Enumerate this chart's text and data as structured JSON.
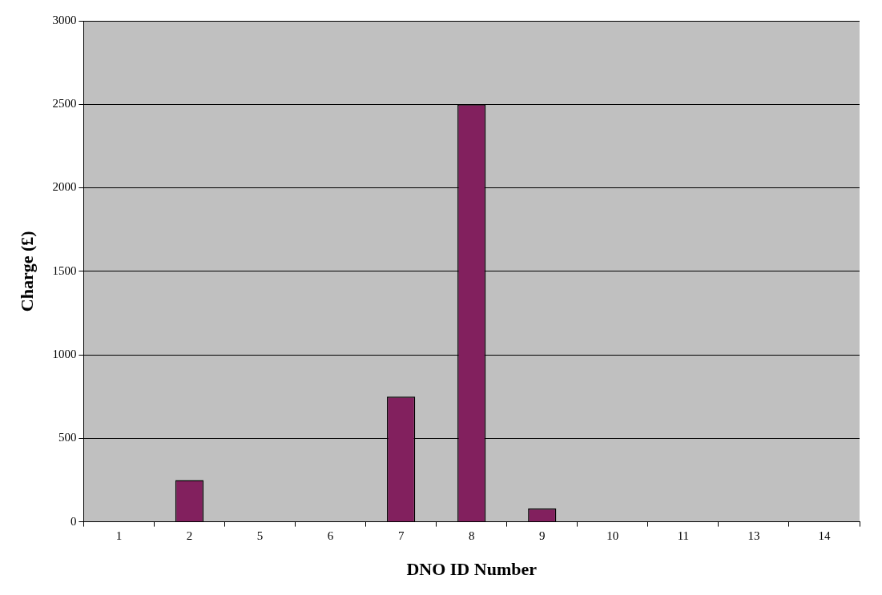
{
  "chart_data": {
    "type": "bar",
    "xlabel": "DNO ID Number",
    "ylabel": "Charge (£)",
    "categories": [
      "1",
      "2",
      "5",
      "6",
      "7",
      "8",
      "9",
      "10",
      "11",
      "13",
      "14"
    ],
    "values": [
      0,
      250,
      0,
      0,
      750,
      2500,
      80,
      0,
      0,
      0,
      0
    ],
    "color": "#82205e",
    "ylim": [
      0,
      3000
    ],
    "yticks": [
      0,
      500,
      1000,
      1500,
      2000,
      2500,
      3000
    ],
    "grid": "y",
    "legend": false
  }
}
